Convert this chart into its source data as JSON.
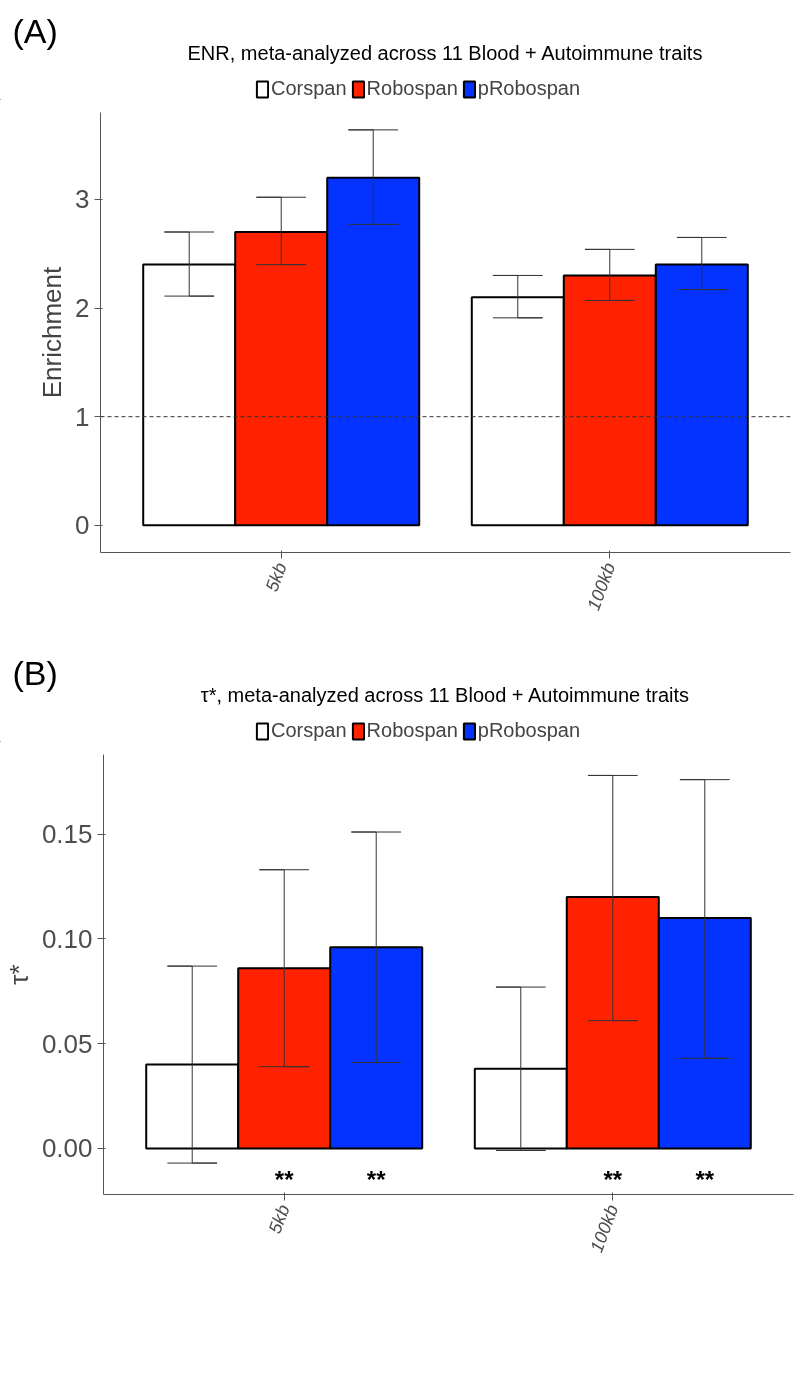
{
  "chart_data": [
    {
      "type": "bar",
      "annotations": [
        "(A)"
      ],
      "title": "ENR, meta-analyzed across 11 Blood + Autoimmune traits",
      "ylabel": "Enrichment",
      "categories": [
        "5kb",
        "100kb"
      ],
      "ylim": [
        -0.25,
        3.8
      ],
      "yticks": [
        0,
        1,
        2,
        3
      ],
      "grid": false,
      "legend": "top",
      "ref_lines": [
        {
          "axis": "y",
          "value": 1,
          "color": "#333333",
          "line_style": "dashed"
        }
      ],
      "series": [
        {
          "name": "Corspan",
          "color": "#ffffff",
          "values": [
            2.4,
            2.1
          ],
          "errors": [
            [
              2.11,
              2.7
            ],
            [
              1.91,
              2.3
            ]
          ]
        },
        {
          "name": "Robospan",
          "color": "#ff2200",
          "values": [
            2.7,
            2.3
          ],
          "errors": [
            [
              2.4,
              3.02
            ],
            [
              2.07,
              2.54
            ]
          ]
        },
        {
          "name": "pRobospan",
          "color": "#0433ff",
          "values": [
            3.2,
            2.4
          ],
          "errors": [
            [
              2.77,
              3.64
            ],
            [
              2.17,
              2.65
            ]
          ]
        }
      ]
    },
    {
      "type": "bar",
      "annotations": [
        "(B)"
      ],
      "title": "τ*, meta-analyzed across 11 Blood + Autoimmune traits",
      "ylabel": "τ*",
      "categories": [
        "5kb",
        "100kb"
      ],
      "ylim": [
        -0.022,
        0.188
      ],
      "yticks": [
        {
          "value": 0,
          "label": "0.00"
        },
        0.05,
        {
          "value": 0.1,
          "label": "0.10"
        },
        0.15
      ],
      "grid": false,
      "legend": "top",
      "series": [
        {
          "name": "Corspan",
          "color": "#ffffff",
          "values": [
            0.04,
            0.038
          ],
          "errors": [
            [
              -0.007,
              0.087
            ],
            [
              -0.001,
              0.077
            ]
          ]
        },
        {
          "name": "Robospan",
          "color": "#ff2200",
          "values": [
            0.086,
            0.12
          ],
          "errors": [
            [
              0.039,
              0.133
            ],
            [
              0.061,
              0.178
            ]
          ],
          "value_labels": [
            "**",
            "**"
          ]
        },
        {
          "name": "pRobospan",
          "color": "#0433ff",
          "values": [
            0.096,
            0.11
          ],
          "errors": [
            [
              0.041,
              0.151
            ],
            [
              0.043,
              0.176
            ]
          ],
          "value_labels": [
            "**",
            "**"
          ]
        }
      ]
    }
  ]
}
